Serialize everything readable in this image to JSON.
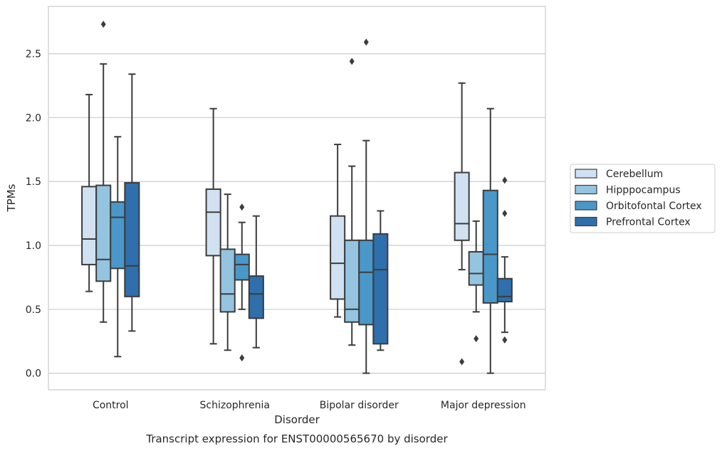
{
  "chart_data": {
    "type": "box",
    "caption": "Transcript expression for ENST00000565670 by disorder",
    "xlabel": "Disorder",
    "ylabel": "TPMs",
    "ylim": [
      -0.13,
      2.87
    ],
    "yticks": [
      0.0,
      0.5,
      1.0,
      1.5,
      2.0,
      2.5
    ],
    "ytick_labels": [
      "0.0",
      "0.5",
      "1.0",
      "1.5",
      "2.0",
      "2.5"
    ],
    "grid": "horizontal",
    "legend_position": "right",
    "categories": [
      "Control",
      "Schizophrenia",
      "Bipolar disorder",
      "Major depression"
    ],
    "series": [
      {
        "name": "Cerebellum",
        "color": "#d0e1f2",
        "boxes": [
          {
            "whisker_low": 0.64,
            "q1": 0.85,
            "median": 1.05,
            "q3": 1.46,
            "whisker_high": 2.18,
            "outliers": []
          },
          {
            "whisker_low": 0.23,
            "q1": 0.92,
            "median": 1.26,
            "q3": 1.44,
            "whisker_high": 2.07,
            "outliers": []
          },
          {
            "whisker_low": 0.44,
            "q1": 0.58,
            "median": 0.86,
            "q3": 1.23,
            "whisker_high": 1.79,
            "outliers": []
          },
          {
            "whisker_low": 0.81,
            "q1": 1.04,
            "median": 1.17,
            "q3": 1.57,
            "whisker_high": 2.27,
            "outliers": [
              0.09
            ]
          }
        ]
      },
      {
        "name": "Hipppocampus",
        "color": "#94c4df",
        "boxes": [
          {
            "whisker_low": 0.4,
            "q1": 0.72,
            "median": 0.89,
            "q3": 1.47,
            "whisker_high": 2.42,
            "outliers": [
              2.73
            ]
          },
          {
            "whisker_low": 0.18,
            "q1": 0.48,
            "median": 0.62,
            "q3": 0.97,
            "whisker_high": 1.4,
            "outliers": []
          },
          {
            "whisker_low": 0.22,
            "q1": 0.4,
            "median": 0.5,
            "q3": 1.04,
            "whisker_high": 1.62,
            "outliers": [
              2.44
            ]
          },
          {
            "whisker_low": 0.48,
            "q1": 0.69,
            "median": 0.78,
            "q3": 0.95,
            "whisker_high": 1.19,
            "outliers": [
              0.27
            ]
          }
        ]
      },
      {
        "name": "Orbitofontal Cortex",
        "color": "#4a98c9",
        "boxes": [
          {
            "whisker_low": 0.13,
            "q1": 0.82,
            "median": 1.22,
            "q3": 1.34,
            "whisker_high": 1.85,
            "outliers": []
          },
          {
            "whisker_low": 0.5,
            "q1": 0.73,
            "median": 0.85,
            "q3": 0.93,
            "whisker_high": 1.18,
            "outliers": [
              1.3,
              0.12
            ]
          },
          {
            "whisker_low": 0.0,
            "q1": 0.38,
            "median": 0.79,
            "q3": 1.04,
            "whisker_high": 1.82,
            "outliers": [
              2.59
            ]
          },
          {
            "whisker_low": 0.0,
            "q1": 0.55,
            "median": 0.93,
            "q3": 1.43,
            "whisker_high": 2.07,
            "outliers": []
          }
        ]
      },
      {
        "name": "Prefrontal Cortex",
        "color": "#2e6fac",
        "boxes": [
          {
            "whisker_low": 0.33,
            "q1": 0.6,
            "median": 0.84,
            "q3": 1.49,
            "whisker_high": 2.34,
            "outliers": []
          },
          {
            "whisker_low": 0.2,
            "q1": 0.43,
            "median": 0.62,
            "q3": 0.76,
            "whisker_high": 1.23,
            "outliers": []
          },
          {
            "whisker_low": 0.18,
            "q1": 0.23,
            "median": 0.81,
            "q3": 1.09,
            "whisker_high": 1.27,
            "outliers": []
          },
          {
            "whisker_low": 0.32,
            "q1": 0.56,
            "median": 0.6,
            "q3": 0.74,
            "whisker_high": 0.91,
            "outliers": [
              1.51,
              1.25,
              0.26
            ]
          }
        ]
      }
    ]
  }
}
